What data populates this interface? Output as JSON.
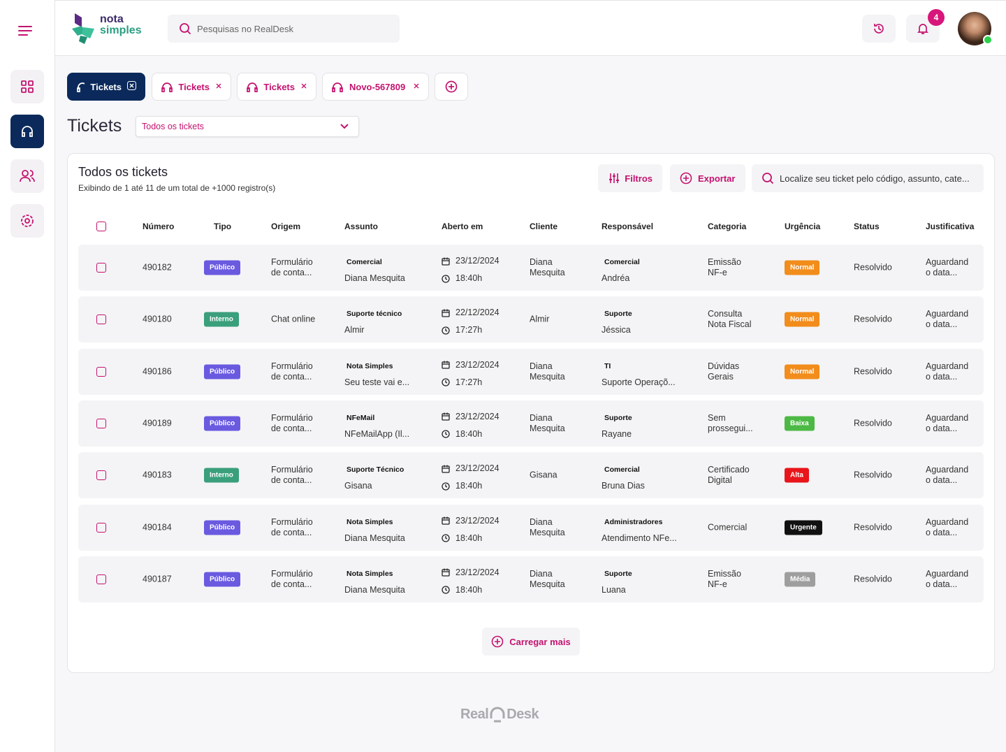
{
  "header": {
    "logo_top": "nota",
    "logo_bottom": "simples",
    "search_placeholder": "Pesquisas no RealDesk",
    "notification_count": "4"
  },
  "tabs": [
    "Tickets",
    "Tickets",
    "Tickets",
    "Novo-567809"
  ],
  "page": {
    "title": "Tickets",
    "view_select": "Todos os tickets"
  },
  "panel": {
    "title": "Todos os tickets",
    "subtitle": "Exibindo de 1 até 11 de um total de +1000 registro(s)",
    "filters_button": "Filtros",
    "export_button": "Exportar",
    "search_placeholder": "Localize seu ticket pelo código, assunto, cate..."
  },
  "table": {
    "columns": [
      "Número",
      "Tipo",
      "Origem",
      "Assunto",
      "Aberto em",
      "Cliente",
      "Responsável",
      "Categoria",
      "Urgência",
      "Status",
      "Justificativa"
    ],
    "rows": [
      {
        "numero": "490182",
        "tipo": "Público",
        "tipo_color": "#6a5ae0",
        "origem": "Formulário de conta...",
        "assunto_grupo": "Comercial",
        "assunto": "Diana Mesquita",
        "data": "23/12/2024",
        "hora": "18:40h",
        "cliente": "Diana Mesquita",
        "responsavel_grupo": "Comercial",
        "responsavel": "Andréa",
        "categoria": "Emissão NF-e",
        "urgencia": "Normal",
        "urgencia_color": "#f28c1b",
        "status": "Resolvido",
        "justificativa": "Aguardando data..."
      },
      {
        "numero": "490180",
        "tipo": "Interno",
        "tipo_color": "#3a9f7b",
        "origem": "Chat online",
        "assunto_grupo": "Suporte técnico",
        "assunto": "Almir",
        "data": "22/12/2024",
        "hora": "17:27h",
        "cliente": "Almir",
        "responsavel_grupo": "Suporte",
        "responsavel": "Jéssica",
        "categoria": "Consulta Nota Fiscal",
        "urgencia": "Normal",
        "urgencia_color": "#f28c1b",
        "status": "Resolvido",
        "justificativa": "Aguardando data..."
      },
      {
        "numero": "490186",
        "tipo": "Público",
        "tipo_color": "#6a5ae0",
        "origem": "Formulário de conta...",
        "assunto_grupo": "Nota Simples",
        "assunto": "Seu teste vai e...",
        "data": "23/12/2024",
        "hora": "17:27h",
        "cliente": "Diana Mesquita",
        "responsavel_grupo": "TI",
        "responsavel": "Suporte Operaçõ...",
        "categoria": "Dúvidas Gerais",
        "urgencia": "Normal",
        "urgencia_color": "#f28c1b",
        "status": "Resolvido",
        "justificativa": "Aguardando data..."
      },
      {
        "numero": "490189",
        "tipo": "Público",
        "tipo_color": "#6a5ae0",
        "origem": "Formulário de conta...",
        "assunto_grupo": "NFeMail",
        "assunto": "NFeMailApp (Il...",
        "data": "23/12/2024",
        "hora": "18:40h",
        "cliente": "Diana Mesquita",
        "responsavel_grupo": "Suporte",
        "responsavel": "Rayane",
        "categoria": "Sem prossegui...",
        "urgencia": "Baixa",
        "urgencia_color": "#4cb944",
        "status": "Resolvido",
        "justificativa": "Aguardando data..."
      },
      {
        "numero": "490183",
        "tipo": "Interno",
        "tipo_color": "#3a9f7b",
        "origem": "Formulário de conta...",
        "assunto_grupo": "Suporte Técnico",
        "assunto": "Gisana",
        "data": "23/12/2024",
        "hora": "18:40h",
        "cliente": "Gisana",
        "responsavel_grupo": "Comercial",
        "responsavel": "Bruna Dias",
        "categoria": "Certificado Digital",
        "urgencia": "Alta",
        "urgencia_color": "#e8151b",
        "status": "Resolvido",
        "justificativa": "Aguardando data..."
      },
      {
        "numero": "490184",
        "tipo": "Público",
        "tipo_color": "#6a5ae0",
        "origem": "Formulário de conta...",
        "assunto_grupo": "Nota Simples",
        "assunto": "Diana Mesquita",
        "data": "23/12/2024",
        "hora": "18:40h",
        "cliente": "Diana Mesquita",
        "responsavel_grupo": "Administradores",
        "responsavel": "Atendimento NFe...",
        "categoria": "Comercial",
        "urgencia": "Urgente",
        "urgencia_color": "#111111",
        "status": "Resolvido",
        "justificativa": "Aguardando data..."
      },
      {
        "numero": "490187",
        "tipo": "Público",
        "tipo_color": "#6a5ae0",
        "origem": "Formulário de conta...",
        "assunto_grupo": "Nota Simples",
        "assunto": "Diana Mesquita",
        "data": "23/12/2024",
        "hora": "18:40h",
        "cliente": "Diana Mesquita",
        "responsavel_grupo": "Suporte",
        "responsavel": "Luana",
        "categoria": "Emissão NF-e",
        "urgencia": "Média",
        "urgencia_color": "#9e9e9e",
        "status": "Resolvido",
        "justificativa": "Aguardando data..."
      }
    ]
  },
  "load_more": "Carregar mais",
  "footer": {
    "brand_left": "Real",
    "brand_right": "Desk"
  }
}
